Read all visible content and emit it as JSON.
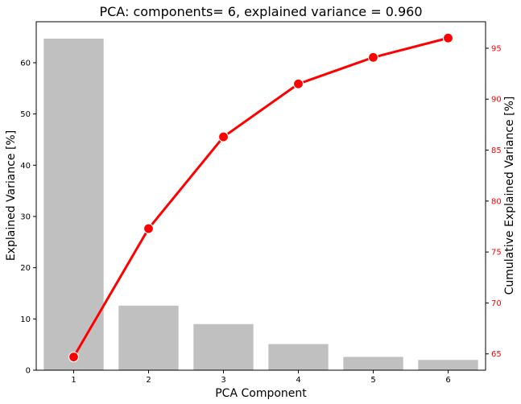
{
  "chart_data": {
    "type": "bar+line",
    "title": "PCA: components= 6, explained variance = 0.960",
    "xlabel": "PCA Component",
    "ylabel_left": "Explained Variance [%]",
    "ylabel_right": "Cumulative Explained Variance [%]",
    "categories": [
      "1",
      "2",
      "3",
      "4",
      "5",
      "6"
    ],
    "bar_series": {
      "values": [
        64.7,
        12.6,
        9.0,
        5.1,
        2.6,
        2.0
      ],
      "color": "#c0c0c0"
    },
    "line_series": {
      "values": [
        64.7,
        77.3,
        86.3,
        91.5,
        94.1,
        96.0
      ],
      "color": "#ff0000"
    },
    "ylim_left": [
      0,
      68
    ],
    "ylim_right": [
      63.4,
      97.6
    ],
    "yticks_left": [
      0,
      10,
      20,
      30,
      40,
      50,
      60
    ],
    "yticks_right": [
      65,
      70,
      75,
      80,
      85,
      90,
      95
    ],
    "grid": false
  }
}
